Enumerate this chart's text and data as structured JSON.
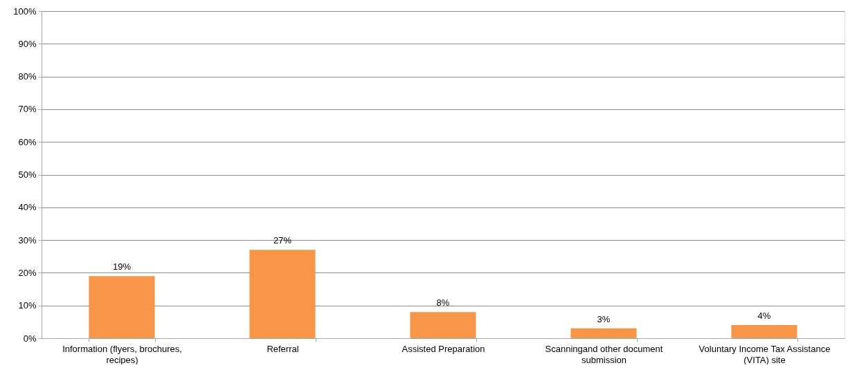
{
  "chart_data": {
    "type": "bar",
    "categories": [
      "Information (flyers, brochures, recipes)",
      "Referral",
      "Assisted Preparation",
      "Scanningand other document submission",
      "Voluntary Income Tax Assistance (VITA) site"
    ],
    "values": [
      19,
      27,
      8,
      3,
      4
    ],
    "color": "#f79646",
    "value_labels": [
      "19%",
      "27%",
      "8%",
      "3%",
      "4%"
    ],
    "ylim": [
      0,
      100
    ],
    "yticks": [
      {
        "value": 0,
        "label": "0%"
      },
      {
        "value": 10,
        "label": "10%"
      },
      {
        "value": 20,
        "label": "20%"
      },
      {
        "value": 30,
        "label": "30%"
      },
      {
        "value": 40,
        "label": "40%"
      },
      {
        "value": 50,
        "label": "50%"
      },
      {
        "value": 60,
        "label": "60%"
      },
      {
        "value": 70,
        "label": "70%"
      },
      {
        "value": 80,
        "label": "80%"
      },
      {
        "value": 90,
        "label": "90%"
      },
      {
        "value": 100,
        "label": "100%"
      }
    ],
    "grid": "y"
  }
}
